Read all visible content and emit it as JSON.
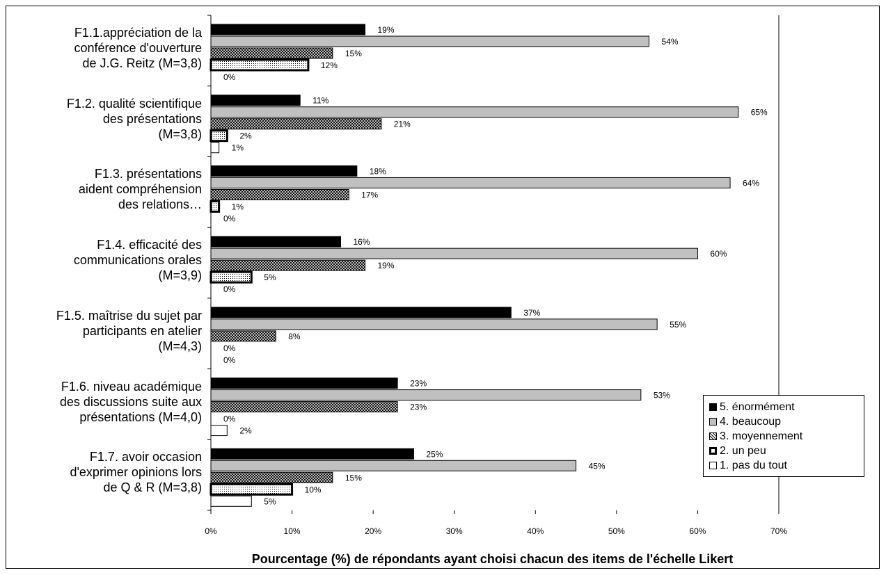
{
  "chart_data": {
    "type": "bar",
    "orientation": "horizontal",
    "categories": [
      "F1.1.appréciation de la\nconférence d'ouverture\nde J.G. Reitz (M=3,8)",
      "F1.2. qualité scientifique\ndes présentations\n(M=3,8)",
      "F1.3. présentations\naident compréhension\ndes relations…",
      "F1.4. efficacité des\ncommunications orales\n(M=3,9)",
      "F1.5. maîtrise du sujet par\nparticipants en atelier\n(M=4,3)",
      "F1.6. niveau académique\ndes discussions suite aux\nprésentations (M=4,0)",
      "F1.7. avoir occasion\nd'exprimer opinions lors\nde Q & R (M=3,8)"
    ],
    "series": [
      {
        "name": "5. énormément",
        "color": "#000000",
        "pattern": "solid",
        "values": [
          19,
          11,
          18,
          16,
          37,
          23,
          25
        ]
      },
      {
        "name": "4. beaucoup",
        "color": "#c0c0c0",
        "pattern": "solid",
        "values": [
          54,
          65,
          64,
          60,
          55,
          53,
          45
        ]
      },
      {
        "name": "3. moyennement",
        "color": "#808080",
        "pattern": "crosshatch",
        "values": [
          15,
          21,
          17,
          19,
          8,
          23,
          15
        ]
      },
      {
        "name": "2. un peu",
        "color": "#ffffff",
        "pattern": "dots",
        "values": [
          12,
          2,
          1,
          5,
          0,
          0,
          10
        ]
      },
      {
        "name": "1. pas du tout",
        "color": "#ffffff",
        "pattern": "solid",
        "values": [
          0,
          1,
          0,
          0,
          0,
          2,
          5
        ]
      }
    ],
    "x_ticks": [
      "0%",
      "10%",
      "20%",
      "30%",
      "40%",
      "50%",
      "60%",
      "70%"
    ],
    "xlabel": "Pourcentage (%) de répondants ayant choisi chacun des items de l'échelle Likert",
    "ylabel": "",
    "title": "",
    "xlim": [
      0,
      70
    ],
    "value_suffix": "%",
    "grid": false,
    "legend_position": "bottom-right"
  }
}
